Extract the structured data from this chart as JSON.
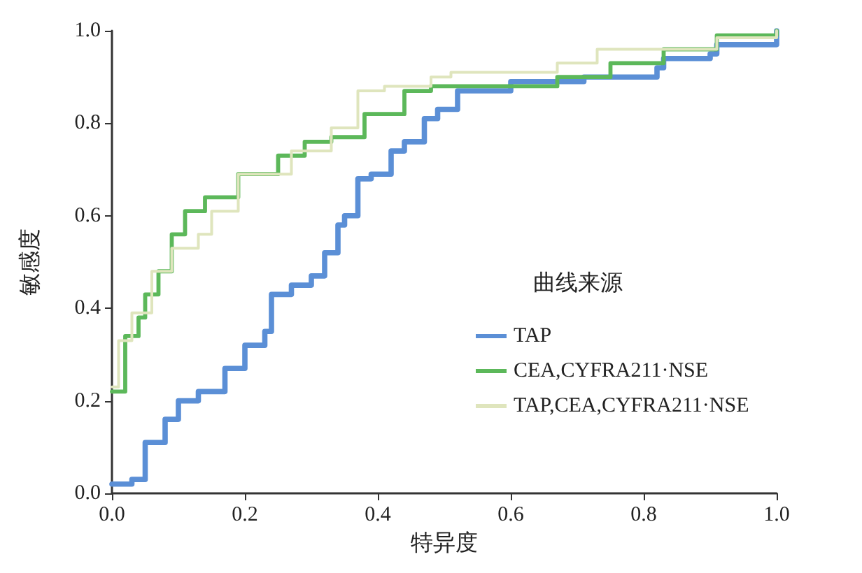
{
  "chart_data": {
    "type": "step",
    "xlabel": "特异度",
    "ylabel": "敏感度",
    "legend_title": "曲线来源",
    "legend": "right",
    "grid": false,
    "marker": "none",
    "line_style": "solid",
    "xlim": [
      0,
      1
    ],
    "ylim": [
      0,
      1
    ],
    "xticks": [
      {
        "value": 0,
        "label": "0.0"
      },
      {
        "value": 0.2,
        "label": "0.2"
      },
      {
        "value": 0.4,
        "label": "0.4"
      },
      {
        "value": 0.6,
        "label": "0.6"
      },
      {
        "value": 0.8,
        "label": "0.8"
      },
      {
        "value": 1,
        "label": "1.0"
      }
    ],
    "yticks": [
      {
        "value": 0,
        "label": "0.0"
      },
      {
        "value": 0.2,
        "label": "0.2"
      },
      {
        "value": 0.4,
        "label": "0.4"
      },
      {
        "value": 0.6,
        "label": "0.6"
      },
      {
        "value": 0.8,
        "label": "0.8"
      },
      {
        "value": 1,
        "label": "1.0"
      }
    ],
    "series": [
      {
        "name": "TAP",
        "color": "#5b8fd6",
        "x": [
          0,
          0.03,
          0.05,
          0.05,
          0.08,
          0.1,
          0.13,
          0.17,
          0.2,
          0.23,
          0.24,
          0.27,
          0.3,
          0.32,
          0.34,
          0.35,
          0.37,
          0.39,
          0.42,
          0.44,
          0.47,
          0.49,
          0.52,
          0.6,
          0.71,
          0.82,
          0.83,
          0.9,
          0.91,
          1.0
        ],
        "values": [
          0.02,
          0.03,
          0.06,
          0.11,
          0.16,
          0.2,
          0.22,
          0.27,
          0.32,
          0.35,
          0.43,
          0.45,
          0.47,
          0.52,
          0.58,
          0.6,
          0.68,
          0.69,
          0.74,
          0.76,
          0.81,
          0.83,
          0.87,
          0.89,
          0.9,
          0.92,
          0.94,
          0.95,
          0.97,
          1.0
        ]
      },
      {
        "name": "CEA,CYFRA211·NSE",
        "color": "#5cb85a",
        "x": [
          0,
          0.02,
          0.02,
          0.04,
          0.05,
          0.07,
          0.09,
          0.11,
          0.14,
          0.19,
          0.25,
          0.29,
          0.33,
          0.38,
          0.44,
          0.48,
          0.53,
          0.67,
          0.75,
          0.83,
          0.91,
          1.0
        ],
        "values": [
          0.22,
          0.24,
          0.34,
          0.38,
          0.43,
          0.48,
          0.56,
          0.61,
          0.64,
          0.69,
          0.73,
          0.76,
          0.77,
          0.82,
          0.87,
          0.88,
          0.88,
          0.9,
          0.93,
          0.96,
          0.99,
          1.0
        ]
      },
      {
        "name": "TAP,CEA,CYFRA211·NSE",
        "color": "#dfe5bd",
        "x": [
          0,
          0.01,
          0.03,
          0.06,
          0.09,
          0.13,
          0.15,
          0.19,
          0.27,
          0.33,
          0.37,
          0.41,
          0.48,
          0.51,
          0.67,
          0.73,
          0.91,
          1.0
        ],
        "values": [
          0.23,
          0.33,
          0.39,
          0.48,
          0.53,
          0.56,
          0.61,
          0.69,
          0.74,
          0.79,
          0.87,
          0.88,
          0.9,
          0.91,
          0.93,
          0.96,
          0.985,
          1.0
        ]
      }
    ]
  }
}
